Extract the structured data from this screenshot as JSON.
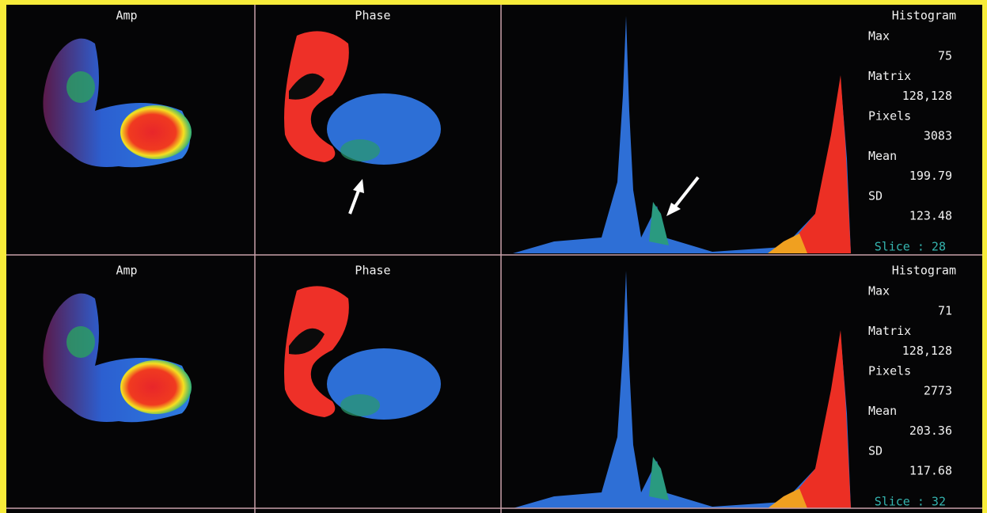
{
  "panels": [
    {
      "amp_label": "Amp",
      "phase_label": "Phase",
      "histogram": {
        "title": "Histogram",
        "stats": [
          {
            "label": "Max",
            "value": "75"
          },
          {
            "label": "Matrix",
            "value": "128,128"
          },
          {
            "label": "Pixels",
            "value": "3083"
          },
          {
            "label": "Mean",
            "value": "199.79"
          },
          {
            "label": "SD",
            "value": "123.48"
          }
        ],
        "slice": "Slice : 28"
      }
    },
    {
      "amp_label": "Amp",
      "phase_label": "Phase",
      "histogram": {
        "title": "Histogram",
        "stats": [
          {
            "label": "Max",
            "value": "71"
          },
          {
            "label": "Matrix",
            "value": "128,128"
          },
          {
            "label": "Pixels",
            "value": "2773"
          },
          {
            "label": "Mean",
            "value": "203.36"
          },
          {
            "label": "SD",
            "value": "117.68"
          }
        ],
        "slice": "Slice : 32"
      }
    }
  ]
}
